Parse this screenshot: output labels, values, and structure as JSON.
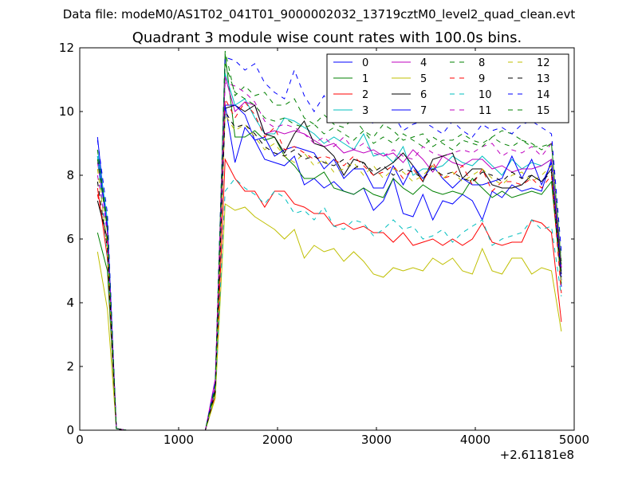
{
  "chart_data": {
    "type": "line",
    "suptitle": "Data file: modeM0/AS1T02_041T01_9000002032_13719cztM0_level2_quad_clean.evt",
    "title": "Quadrant 3 module wise count rates with 100.0s bins.",
    "xlabel": "",
    "ylabel": "",
    "x_offset_label": "+2.61181e8",
    "xlim": [
      0,
      5000
    ],
    "ylim": [
      0,
      12
    ],
    "xticks": [
      0,
      1000,
      2000,
      3000,
      4000,
      5000
    ],
    "yticks": [
      0,
      2,
      4,
      6,
      8,
      10,
      12
    ],
    "legend_position": "top-right",
    "x": [
      180,
      280,
      370,
      470,
      570,
      670,
      770,
      870,
      970,
      1070,
      1170,
      1270,
      1370,
      1470,
      1570,
      1670,
      1770,
      1870,
      1970,
      2070,
      2170,
      2270,
      2370,
      2470,
      2570,
      2670,
      2770,
      2870,
      2970,
      3070,
      3170,
      3270,
      3370,
      3470,
      3570,
      3670,
      3770,
      3870,
      3970,
      4070,
      4170,
      4270,
      4370,
      4470,
      4570,
      4670,
      4770,
      4870
    ],
    "series": [
      {
        "name": "0",
        "color": "#0000ff",
        "dash": "solid",
        "values": [
          9.2,
          6.2,
          0.05,
          0,
          0,
          0,
          0,
          0,
          0,
          0,
          0,
          0,
          1.2,
          10.2,
          8.4,
          9.5,
          9.1,
          8.5,
          8.4,
          8.3,
          8.6,
          7.7,
          7.9,
          7.6,
          7.8,
          7.5,
          7.4,
          7.6,
          6.9,
          7.2,
          7.9,
          6.8,
          6.7,
          7.4,
          6.6,
          7.2,
          7.1,
          7.4,
          7.2,
          6.6,
          7.5,
          7.3,
          7.7,
          7.5,
          7.6,
          7.5,
          8.5,
          4.5
        ]
      },
      {
        "name": "1",
        "color": "#008000",
        "dash": "solid",
        "values": [
          6.2,
          5.0,
          0.05,
          0,
          0,
          0,
          0,
          0,
          0,
          0,
          0,
          0,
          1.3,
          11.8,
          9.2,
          9.2,
          9.4,
          9.1,
          9.2,
          8.6,
          8.3,
          7.9,
          7.9,
          8.1,
          7.6,
          7.5,
          7.4,
          7.6,
          7.4,
          7.3,
          7.9,
          7.6,
          7.4,
          7.7,
          7.5,
          7.4,
          7.5,
          7.4,
          7.9,
          7.6,
          7.3,
          7.5,
          7.3,
          7.4,
          7.5,
          7.4,
          7.8,
          4.6
        ]
      },
      {
        "name": "2",
        "color": "#ff0000",
        "dash": "solid",
        "values": [
          7.6,
          5.4,
          0.05,
          0,
          0,
          0,
          0,
          0,
          0,
          0,
          0,
          0,
          1.1,
          8.5,
          7.9,
          7.5,
          7.5,
          7.0,
          7.5,
          7.5,
          7.1,
          7.0,
          6.8,
          6.8,
          6.4,
          6.5,
          6.3,
          6.4,
          6.2,
          6.2,
          5.9,
          6.2,
          5.8,
          5.9,
          6.0,
          5.8,
          6.0,
          5.8,
          6.0,
          6.5,
          5.9,
          5.8,
          5.9,
          5.9,
          6.6,
          6.5,
          6.2,
          3.4
        ]
      },
      {
        "name": "3",
        "color": "#00bfbf",
        "dash": "solid",
        "values": [
          8.8,
          6.6,
          0.05,
          0,
          0,
          0,
          0,
          0,
          0,
          0,
          0,
          0,
          1.4,
          11.2,
          10.2,
          10.4,
          9.8,
          9.3,
          9.3,
          9.8,
          9.7,
          9.5,
          9.3,
          9.0,
          9.2,
          9.0,
          8.8,
          9.3,
          8.6,
          8.7,
          8.4,
          8.9,
          8.0,
          8.2,
          8.2,
          8.3,
          8.6,
          8.4,
          8.3,
          8.6,
          8.3,
          8.0,
          8.5,
          8.2,
          8.4,
          8.3,
          8.5,
          5.0
        ]
      },
      {
        "name": "4",
        "color": "#bf00bf",
        "dash": "solid",
        "values": [
          8.4,
          6.4,
          0.05,
          0,
          0,
          0,
          0,
          0,
          0,
          0,
          0,
          0,
          1.6,
          11.1,
          10.0,
          10.3,
          10.2,
          9.3,
          9.4,
          9.3,
          9.4,
          9.3,
          9.1,
          8.9,
          9.0,
          8.7,
          8.8,
          8.7,
          8.8,
          8.6,
          8.7,
          8.4,
          8.8,
          8.5,
          8.1,
          8.6,
          8.4,
          8.3,
          8.5,
          8.5,
          8.2,
          8.3,
          8.1,
          8.2,
          8.2,
          8.3,
          8.5,
          5.1
        ]
      },
      {
        "name": "5",
        "color": "#bfbf00",
        "dash": "solid",
        "values": [
          5.6,
          3.8,
          0.05,
          0,
          0,
          0,
          0,
          0,
          0,
          0,
          0,
          0,
          1.0,
          7.1,
          6.9,
          7.0,
          6.7,
          6.5,
          6.3,
          6.0,
          6.3,
          5.4,
          5.8,
          5.6,
          5.7,
          5.3,
          5.6,
          5.3,
          4.9,
          4.8,
          5.1,
          5.0,
          5.1,
          5.0,
          5.4,
          5.2,
          5.4,
          5.0,
          4.9,
          5.7,
          5.0,
          4.9,
          5.4,
          5.4,
          4.9,
          5.1,
          5.0,
          3.1
        ]
      },
      {
        "name": "6",
        "color": "#000000",
        "dash": "solid",
        "values": [
          7.2,
          6.0,
          0.05,
          0,
          0,
          0,
          0,
          0,
          0,
          0,
          0,
          0,
          1.2,
          10.1,
          10.2,
          10.0,
          10.2,
          9.3,
          9.2,
          8.7,
          9.3,
          9.7,
          9.0,
          8.9,
          8.6,
          8.0,
          8.5,
          8.4,
          8.0,
          8.2,
          8.4,
          8.7,
          8.3,
          7.8,
          8.5,
          8.6,
          8.7,
          7.9,
          8.2,
          8.2,
          7.7,
          7.6,
          7.6,
          7.7,
          8.0,
          7.8,
          8.2,
          4.9
        ]
      },
      {
        "name": "7",
        "color": "#0000ff",
        "dash": "solid",
        "values": [
          8.6,
          6.4,
          0.05,
          0,
          0,
          0,
          0,
          0,
          0,
          0,
          0,
          0,
          1.4,
          10.2,
          10.2,
          9.9,
          9.1,
          9.2,
          8.6,
          8.8,
          8.9,
          8.8,
          8.7,
          8.2,
          8.5,
          7.9,
          8.2,
          8.2,
          7.6,
          7.6,
          8.3,
          7.7,
          8.3,
          7.9,
          8.3,
          7.9,
          7.6,
          7.9,
          7.7,
          7.7,
          7.8,
          7.9,
          8.6,
          7.9,
          8.5,
          7.7,
          8.4,
          4.7
        ]
      },
      {
        "name": "8",
        "color": "#008000",
        "dash": "dashed",
        "values": [
          8.8,
          6.5,
          0.05,
          0,
          0,
          0,
          0,
          0,
          0,
          0,
          0,
          0,
          1.3,
          11.9,
          10.5,
          10.8,
          10.5,
          10.6,
          10.2,
          10.2,
          10.4,
          9.8,
          9.6,
          9.9,
          9.6,
          9.5,
          9.8,
          9.4,
          9.2,
          9.6,
          9.4,
          9.1,
          9.2,
          9.3,
          8.9,
          9.1,
          9.1,
          9.3,
          9.1,
          9.0,
          9.2,
          9.4,
          9.3,
          9.1,
          8.9,
          8.9,
          9.0,
          5.3
        ]
      },
      {
        "name": "9",
        "color": "#ff0000",
        "dash": "dashed",
        "values": [
          7.4,
          5.9,
          0.05,
          0,
          0,
          0,
          0,
          0,
          0,
          0,
          0,
          0,
          1.3,
          10.4,
          9.8,
          10.3,
          9.9,
          9.2,
          9.5,
          8.8,
          8.9,
          8.7,
          8.5,
          8.6,
          8.5,
          8.3,
          8.6,
          8.3,
          8.0,
          8.1,
          8.3,
          7.9,
          8.2,
          7.8,
          8.4,
          7.9,
          8.0,
          8.3,
          7.7,
          8.2,
          7.5,
          7.8,
          7.8,
          7.7,
          7.9,
          7.6,
          8.0,
          4.3
        ]
      },
      {
        "name": "10",
        "color": "#00bfbf",
        "dash": "dashed",
        "values": [
          8.6,
          5.5,
          0.05,
          0,
          0,
          0,
          0,
          0,
          0,
          0,
          0,
          0,
          1.2,
          7.5,
          7.9,
          7.6,
          7.4,
          7.1,
          7.5,
          7.3,
          6.8,
          6.9,
          6.6,
          7.0,
          6.4,
          6.3,
          6.6,
          6.5,
          6.1,
          6.3,
          6.6,
          6.3,
          6.4,
          6.0,
          6.1,
          6.3,
          5.9,
          6.2,
          6.4,
          6.6,
          5.8,
          6.0,
          6.1,
          6.2,
          6.6,
          6.3,
          6.4,
          4.2
        ]
      },
      {
        "name": "11",
        "color": "#bf00bf",
        "dash": "dashed",
        "values": [
          8.0,
          6.2,
          0.05,
          0,
          0,
          0,
          0,
          0,
          0,
          0,
          0,
          0,
          1.4,
          10.9,
          10.8,
          10.6,
          10.3,
          9.7,
          9.5,
          9.6,
          9.5,
          9.3,
          9.0,
          9.2,
          8.9,
          9.2,
          8.8,
          9.0,
          8.7,
          8.6,
          8.8,
          8.6,
          8.5,
          8.9,
          8.7,
          8.6,
          8.7,
          8.8,
          8.7,
          8.9,
          9.0,
          8.6,
          8.8,
          8.7,
          8.9,
          8.6,
          9.0,
          5.1
        ]
      },
      {
        "name": "12",
        "color": "#bfbf00",
        "dash": "dashed",
        "values": [
          8.2,
          5.8,
          0.05,
          0,
          0,
          0,
          0,
          0,
          0,
          0,
          0,
          0,
          1.1,
          9.9,
          9.4,
          9.6,
          9.2,
          8.8,
          9.0,
          8.6,
          8.4,
          8.7,
          8.3,
          8.5,
          8.1,
          8.2,
          8.4,
          8.0,
          8.3,
          7.9,
          8.2,
          8.1,
          7.8,
          8.0,
          8.3,
          7.9,
          8.1,
          7.8,
          8.0,
          8.2,
          7.9,
          7.7,
          8.0,
          8.1,
          7.8,
          8.0,
          8.3,
          4.6
        ]
      },
      {
        "name": "13",
        "color": "#000000",
        "dash": "dashed",
        "values": [
          7.8,
          5.7,
          0.05,
          0,
          0,
          0,
          0,
          0,
          0,
          0,
          0,
          0,
          1.2,
          10.0,
          9.5,
          9.6,
          9.3,
          8.9,
          8.7,
          8.6,
          8.8,
          8.5,
          8.6,
          8.4,
          8.3,
          8.5,
          8.2,
          8.4,
          8.1,
          8.3,
          8.0,
          8.2,
          8.1,
          7.9,
          8.2,
          8.0,
          8.1,
          7.9,
          7.8,
          8.1,
          8.0,
          7.8,
          8.1,
          7.9,
          8.0,
          7.8,
          8.1,
          4.8
        ]
      },
      {
        "name": "14",
        "color": "#0000ff",
        "dash": "dashed",
        "values": [
          9.1,
          6.8,
          0.05,
          0,
          0,
          0,
          0,
          0,
          0,
          0,
          0,
          0,
          1.5,
          11.7,
          11.6,
          11.3,
          11.5,
          10.9,
          10.6,
          10.4,
          11.3,
          10.5,
          10.0,
          10.5,
          9.9,
          10.2,
          9.8,
          10.0,
          9.6,
          9.8,
          9.9,
          9.4,
          9.6,
          9.7,
          9.5,
          9.3,
          9.7,
          9.4,
          9.2,
          9.6,
          9.4,
          9.5,
          9.3,
          9.6,
          9.7,
          9.5,
          9.3,
          5.6
        ]
      },
      {
        "name": "15",
        "color": "#008000",
        "dash": "dashed",
        "values": [
          8.5,
          6.3,
          0.05,
          0,
          0,
          0,
          0,
          0,
          0,
          0,
          0,
          0,
          1.4,
          11.5,
          10.6,
          10.4,
          10.2,
          9.8,
          9.7,
          9.8,
          9.6,
          9.5,
          9.6,
          9.3,
          9.5,
          9.3,
          9.1,
          9.4,
          9.0,
          9.2,
          9.0,
          9.3,
          9.1,
          8.9,
          9.2,
          9.0,
          8.8,
          9.1,
          9.0,
          8.9,
          9.2,
          9.0,
          8.9,
          9.1,
          9.0,
          8.8,
          9.0,
          5.2
        ]
      }
    ]
  }
}
